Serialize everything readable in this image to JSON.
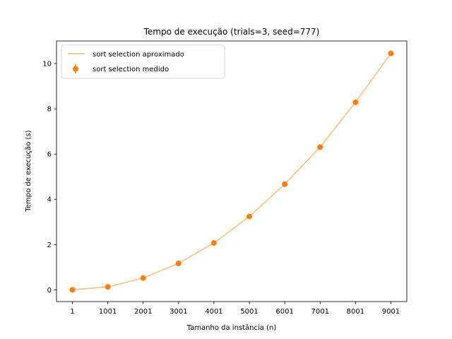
{
  "chart_data": {
    "type": "line",
    "title": "Tempo de execução (trials=3, seed=777)",
    "xlabel": "Tamanho da instância (n)",
    "ylabel": "Tempo de execução (s)",
    "categories": [
      "1",
      "1001",
      "2001",
      "3001",
      "4001",
      "5001",
      "6001",
      "7001",
      "8001",
      "9001"
    ],
    "x": [
      1,
      1001,
      2001,
      3001,
      4001,
      5001,
      6001,
      7001,
      8001,
      9001
    ],
    "xlim": [
      -449,
      9451
    ],
    "ylim": [
      -0.52,
      11.0
    ],
    "yticks": [
      0,
      2,
      4,
      6,
      8,
      10
    ],
    "grid": false,
    "legend_position": "top-left",
    "series": [
      {
        "name": "sort selection aproximado",
        "kind": "line",
        "color": "#ffbb78",
        "values": [
          0.0,
          0.13,
          0.52,
          1.17,
          2.07,
          3.24,
          4.67,
          6.31,
          8.29,
          10.45
        ]
      },
      {
        "name": "sort selection medido",
        "kind": "errorbar",
        "color": "#ff7f0e",
        "values": [
          0.0,
          0.13,
          0.52,
          1.17,
          2.07,
          3.24,
          4.67,
          6.31,
          8.29,
          10.45
        ]
      }
    ]
  }
}
